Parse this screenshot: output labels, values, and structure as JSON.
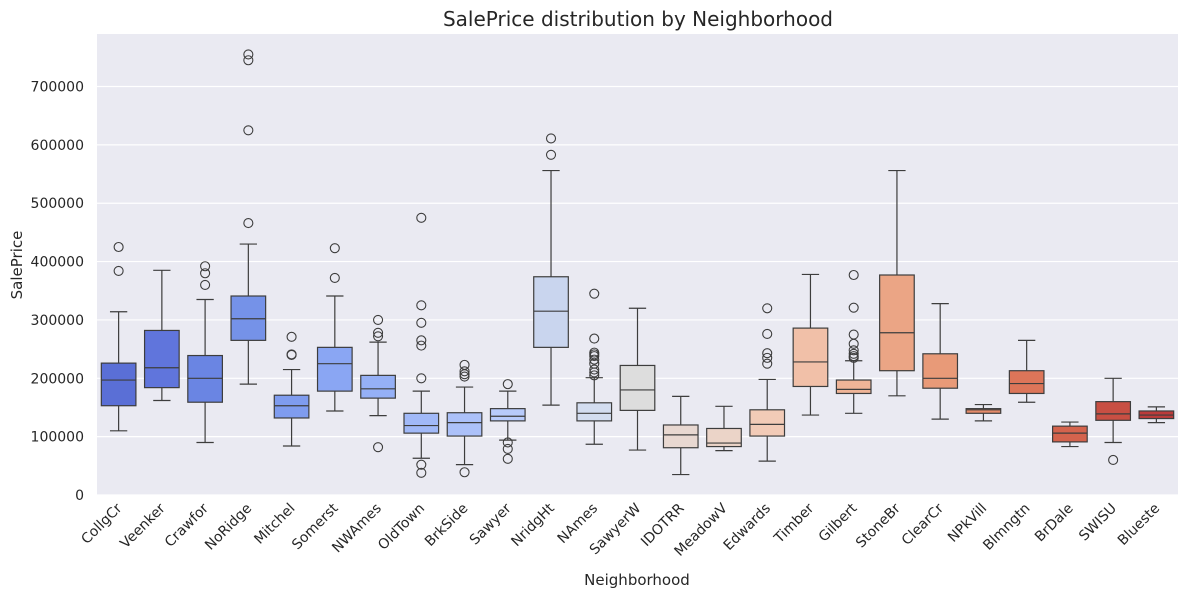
{
  "chart_data": {
    "type": "boxplot",
    "title": "SalePrice distribution by Neighborhood",
    "xlabel": "Neighborhood",
    "ylabel": "SalePrice",
    "ylim": [
      0,
      790000
    ],
    "yticks": [
      0,
      100000,
      200000,
      300000,
      400000,
      500000,
      600000,
      700000
    ],
    "ytick_labels": [
      "0",
      "100000",
      "200000",
      "300000",
      "400000",
      "500000",
      "600000",
      "700000"
    ],
    "grid": true,
    "background": "#eaeaf2",
    "categories": [
      "CollgCr",
      "Veenker",
      "Crawfor",
      "NoRidge",
      "Mitchel",
      "Somerst",
      "NWAmes",
      "OldTown",
      "BrkSide",
      "Sawyer",
      "NridgHt",
      "NAmes",
      "SawyerW",
      "IDOTRR",
      "MeadowV",
      "Edwards",
      "Timber",
      "Gilbert",
      "StoneBr",
      "ClearCr",
      "NPkVill",
      "Blmngtn",
      "BrDale",
      "SWISU",
      "Blueste"
    ],
    "boxes": [
      {
        "name": "CollgCr",
        "whislo": 110000,
        "q1": 153000,
        "med": 197000,
        "q3": 226000,
        "whishi": 314000,
        "fliers": [
          384000,
          425000
        ],
        "color": "#5a6fd6"
      },
      {
        "name": "Veenker",
        "whislo": 162000,
        "q1": 184000,
        "med": 218000,
        "q3": 282000,
        "whishi": 385000,
        "fliers": [],
        "color": "#6075dc"
      },
      {
        "name": "Crawfor",
        "whislo": 90000,
        "q1": 159000,
        "med": 200000,
        "q3": 239000,
        "whishi": 335000,
        "fliers": [
          360000,
          380000,
          392000
        ],
        "color": "#6a85e3"
      },
      {
        "name": "NoRidge",
        "whislo": 190000,
        "q1": 265000,
        "med": 302000,
        "q3": 341000,
        "whishi": 430000,
        "fliers": [
          466000,
          625000,
          745000,
          755000
        ],
        "color": "#7592e8"
      },
      {
        "name": "Mitchel",
        "whislo": 84000,
        "q1": 132000,
        "med": 153000,
        "q3": 171000,
        "whishi": 215000,
        "fliers": [
          240000,
          241000,
          271000
        ],
        "color": "#7f9cef"
      },
      {
        "name": "Somerst",
        "whislo": 144000,
        "q1": 178000,
        "med": 225000,
        "q3": 253000,
        "whishi": 341000,
        "fliers": [
          372000,
          423000
        ],
        "color": "#8aa6f3"
      },
      {
        "name": "NWAmes",
        "whislo": 136000,
        "q1": 166000,
        "med": 182000,
        "q3": 205000,
        "whishi": 262000,
        "fliers": [
          82000,
          272000,
          278000,
          300000
        ],
        "color": "#95b0f6"
      },
      {
        "name": "OldTown",
        "whislo": 63000,
        "q1": 106000,
        "med": 119000,
        "q3": 140000,
        "whishi": 178000,
        "fliers": [
          38000,
          52000,
          200000,
          256000,
          265000,
          295000,
          325000,
          475000
        ],
        "color": "#a1b9f8"
      },
      {
        "name": "BrkSide",
        "whislo": 52000,
        "q1": 101000,
        "med": 124000,
        "q3": 141000,
        "whishi": 185000,
        "fliers": [
          39000,
          203000,
          207000,
          212000,
          223000
        ],
        "color": "#acc1f9"
      },
      {
        "name": "Sawyer",
        "whislo": 94000,
        "q1": 127000,
        "med": 135000,
        "q3": 148000,
        "whishi": 178000,
        "fliers": [
          62000,
          79000,
          90000,
          190000
        ],
        "color": "#b8cbfb"
      },
      {
        "name": "NridgHt",
        "whislo": 154000,
        "q1": 253000,
        "med": 315000,
        "q3": 374000,
        "whishi": 556000,
        "fliers": [
          583000,
          611000
        ],
        "color": "#c9d5ee"
      },
      {
        "name": "NAmes",
        "whislo": 87000,
        "q1": 127000,
        "med": 140000,
        "q3": 158000,
        "whishi": 201000,
        "fliers": [
          205000,
          210000,
          215000,
          225000,
          232000,
          238000,
          241000,
          244000,
          268000,
          345000
        ],
        "color": "#d3ddf0"
      },
      {
        "name": "SawyerW",
        "whislo": 77000,
        "q1": 145000,
        "med": 180000,
        "q3": 222000,
        "whishi": 320000,
        "fliers": [],
        "color": "#dddddd"
      },
      {
        "name": "IDOTRR",
        "whislo": 35000,
        "q1": 81000,
        "med": 103000,
        "q3": 120000,
        "whishi": 169000,
        "fliers": [],
        "color": "#e8d8d1"
      },
      {
        "name": "MeadowV",
        "whislo": 76000,
        "q1": 83000,
        "med": 89000,
        "q3": 114000,
        "whishi": 152000,
        "fliers": [],
        "color": "#ebd4c8"
      },
      {
        "name": "Edwards",
        "whislo": 58000,
        "q1": 101000,
        "med": 121000,
        "q3": 146000,
        "whishi": 198000,
        "fliers": [
          225000,
          235000,
          243000,
          276000,
          320000
        ],
        "color": "#f2cbb7"
      },
      {
        "name": "Timber",
        "whislo": 137000,
        "q1": 186000,
        "med": 228000,
        "q3": 286000,
        "whishi": 378000,
        "fliers": [],
        "color": "#f1c0a8"
      },
      {
        "name": "Gilbert",
        "whislo": 140000,
        "q1": 174000,
        "med": 181000,
        "q3": 197000,
        "whishi": 230000,
        "fliers": [
          235000,
          238000,
          242000,
          248000,
          259000,
          275000,
          321000,
          377000
        ],
        "color": "#efb497"
      },
      {
        "name": "StoneBr",
        "whislo": 170000,
        "q1": 213000,
        "med": 278000,
        "q3": 377000,
        "whishi": 556000,
        "fliers": [],
        "color": "#eba585"
      },
      {
        "name": "ClearCr",
        "whislo": 130000,
        "q1": 183000,
        "med": 200000,
        "q3": 242000,
        "whishi": 328000,
        "fliers": [],
        "color": "#e89a78"
      },
      {
        "name": "NPkVill",
        "whislo": 127000,
        "q1": 140000,
        "med": 146000,
        "q3": 148000,
        "whishi": 155000,
        "fliers": [],
        "color": "#e58b6a"
      },
      {
        "name": "Blmngtn",
        "whislo": 159000,
        "q1": 174000,
        "med": 191000,
        "q3": 213000,
        "whishi": 265000,
        "fliers": [],
        "color": "#dc7559"
      },
      {
        "name": "BrDale",
        "whislo": 83000,
        "q1": 91000,
        "med": 106000,
        "q3": 118000,
        "whishi": 125000,
        "fliers": [],
        "color": "#d4634d"
      },
      {
        "name": "SWISU",
        "whislo": 90000,
        "q1": 128000,
        "med": 139000,
        "q3": 160000,
        "whishi": 200000,
        "fliers": [
          60000
        ],
        "color": "#c84f43"
      },
      {
        "name": "Blueste",
        "whislo": 124000,
        "q1": 131000,
        "med": 137000,
        "q3": 144000,
        "whishi": 151000,
        "fliers": [],
        "color": "#bb3b3a"
      }
    ]
  }
}
